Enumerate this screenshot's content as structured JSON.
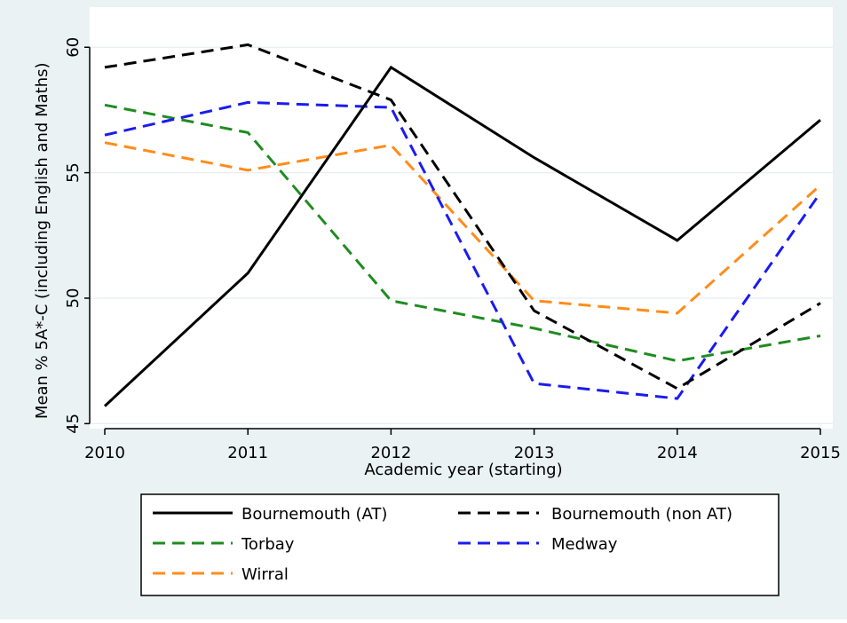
{
  "chart_data": {
    "type": "line",
    "title": "",
    "xlabel": "Academic year (starting)",
    "ylabel": "Mean % 5A*-C (including English and Maths)",
    "x": [
      2010,
      2011,
      2012,
      2013,
      2014,
      2015
    ],
    "xticks": [
      "2010",
      "2011",
      "2012",
      "2013",
      "2014",
      "2015"
    ],
    "yticks": [
      "45",
      "50",
      "55",
      "60"
    ],
    "ylim": [
      44.8,
      61.6
    ],
    "xlim": [
      2010,
      2015
    ],
    "grid": "horizontal",
    "legend_position": "bottom",
    "series": [
      {
        "name": "Bournemouth (AT)",
        "values": [
          45.7,
          51.0,
          59.2,
          55.6,
          52.3,
          57.1
        ],
        "color": "#000000",
        "style": "solid"
      },
      {
        "name": "Bournemouth (non AT)",
        "values": [
          59.2,
          60.1,
          57.9,
          49.5,
          46.4,
          49.8
        ],
        "color": "#000000",
        "style": "dashed"
      },
      {
        "name": "Torbay",
        "values": [
          57.7,
          56.6,
          49.9,
          48.8,
          47.5,
          48.5
        ],
        "color": "#1f8c1f",
        "style": "dashed"
      },
      {
        "name": "Medway",
        "values": [
          56.5,
          57.8,
          57.6,
          46.6,
          46.0,
          54.2
        ],
        "color": "#1b1bf0",
        "style": "dashed"
      },
      {
        "name": "Wirral",
        "values": [
          56.2,
          55.1,
          56.1,
          49.9,
          49.4,
          54.5
        ],
        "color": "#ff8c1a",
        "style": "dashed"
      }
    ]
  },
  "colors": {
    "outer_background": "#eaf2f3",
    "plot_background": "#ffffff",
    "grid": "#e8eef0",
    "axis": "#000000"
  }
}
